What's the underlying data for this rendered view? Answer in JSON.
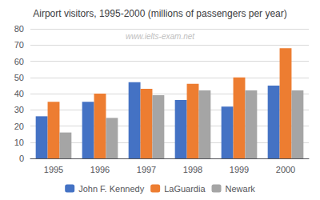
{
  "chart_data": {
    "type": "bar",
    "title": "Airport visitors, 1995-2000 (millions of passengers per year)",
    "annotations": [
      "www.ielts-exam.net"
    ],
    "categories": [
      "1995",
      "1996",
      "1997",
      "1998",
      "1999",
      "2000"
    ],
    "series": [
      {
        "name": "John F. Kennedy",
        "color": "#4472c4",
        "values": [
          26,
          35,
          47,
          36,
          32,
          45
        ]
      },
      {
        "name": "LaGuardia",
        "color": "#ed7d31",
        "values": [
          35,
          40,
          43,
          46,
          50,
          68
        ]
      },
      {
        "name": "Newark",
        "color": "#a5a5a5",
        "values": [
          16,
          25,
          39,
          42,
          42,
          42
        ]
      }
    ],
    "ylim": [
      0,
      80
    ],
    "yticks": [
      0,
      10,
      20,
      30,
      40,
      50,
      60,
      70,
      80
    ],
    "grid": true,
    "legend": "bottom"
  }
}
